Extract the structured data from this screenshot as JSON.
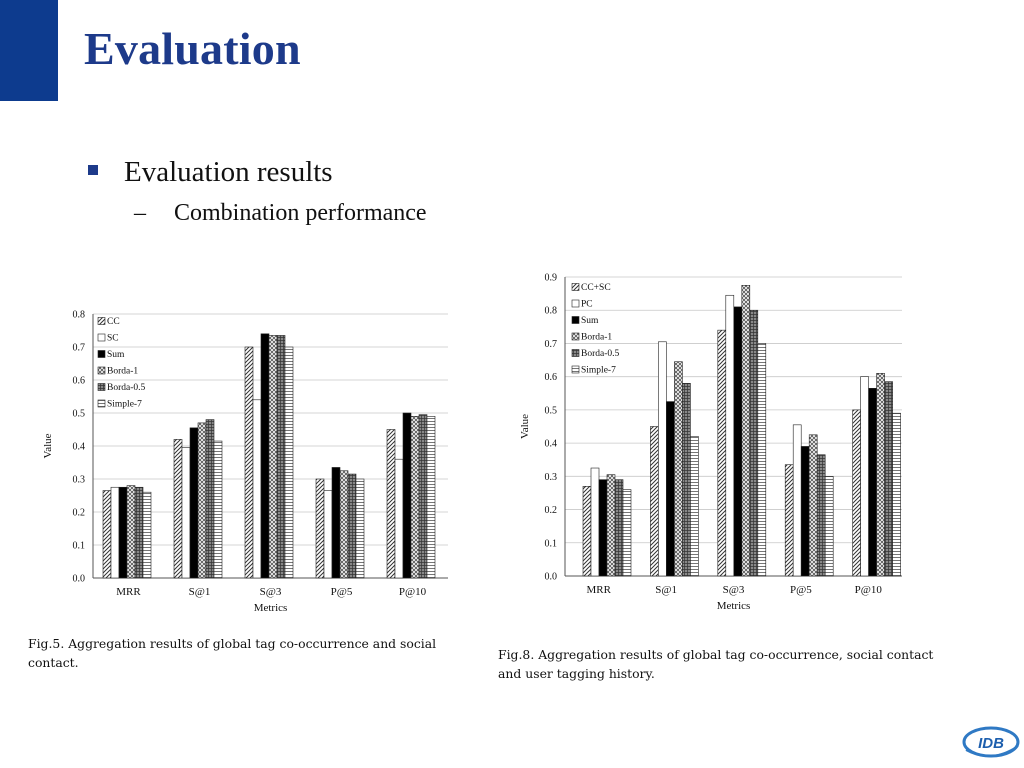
{
  "slide": {
    "title": "Evaluation",
    "bullet": "Evaluation results",
    "sub_dash": "–",
    "sub_bullet": "Combination performance",
    "logo_text": "IDB",
    "colors": {
      "accent": "#0d3b8e",
      "title": "#1d3a8a"
    }
  },
  "captions": {
    "fig5": "Fig.5. Aggregation results of global tag co-occurrence and social contact.",
    "fig8": "Fig.8. Aggregation results of global tag co-occurrence, social contact and user tagging history."
  },
  "chart_data": [
    {
      "type": "bar",
      "categories": [
        "MRR",
        "S@1",
        "S@3",
        "P@5",
        "P@10"
      ],
      "xlabel": "Metrics",
      "ylabel": "Value",
      "ylim": [
        0,
        0.8
      ],
      "yticks": [
        "0.0",
        "0.1",
        "0.2",
        "0.3",
        "0.4",
        "0.5",
        "0.6",
        "0.7",
        "0.8"
      ],
      "grid": true,
      "legend_position": "top-left",
      "series": [
        {
          "name": "CC",
          "pattern": "diag",
          "values": [
            0.265,
            0.42,
            0.7,
            0.3,
            0.45
          ]
        },
        {
          "name": "SC",
          "pattern": "white",
          "values": [
            0.275,
            0.395,
            0.54,
            0.265,
            0.36
          ]
        },
        {
          "name": "Sum",
          "pattern": "black",
          "values": [
            0.275,
            0.455,
            0.74,
            0.335,
            0.5
          ]
        },
        {
          "name": "Borda-1",
          "pattern": "cross",
          "values": [
            0.28,
            0.47,
            0.735,
            0.325,
            0.49
          ]
        },
        {
          "name": "Borda-0.5",
          "pattern": "grid",
          "values": [
            0.275,
            0.48,
            0.735,
            0.315,
            0.495
          ]
        },
        {
          "name": "Simple-7",
          "pattern": "hlines",
          "values": [
            0.26,
            0.415,
            0.7,
            0.3,
            0.49
          ]
        }
      ]
    },
    {
      "type": "bar",
      "categories": [
        "MRR",
        "S@1",
        "S@3",
        "P@5",
        "P@10"
      ],
      "xlabel": "Metrics",
      "ylabel": "Value",
      "ylim": [
        0,
        0.9
      ],
      "yticks": [
        "0.0",
        "0.1",
        "0.2",
        "0.3",
        "0.4",
        "0.5",
        "0.6",
        "0.7",
        "0.8",
        "0.9"
      ],
      "grid": true,
      "legend_position": "top-left",
      "series": [
        {
          "name": "CC+SC",
          "pattern": "diag",
          "values": [
            0.27,
            0.45,
            0.74,
            0.335,
            0.5
          ]
        },
        {
          "name": "PC",
          "pattern": "white",
          "values": [
            0.325,
            0.705,
            0.845,
            0.455,
            0.6
          ]
        },
        {
          "name": "Sum",
          "pattern": "black",
          "values": [
            0.29,
            0.525,
            0.81,
            0.39,
            0.565
          ]
        },
        {
          "name": "Borda-1",
          "pattern": "cross",
          "values": [
            0.305,
            0.645,
            0.875,
            0.425,
            0.61
          ]
        },
        {
          "name": "Borda-0.5",
          "pattern": "grid",
          "values": [
            0.29,
            0.58,
            0.8,
            0.365,
            0.585
          ]
        },
        {
          "name": "Simple-7",
          "pattern": "hlines",
          "values": [
            0.26,
            0.42,
            0.7,
            0.3,
            0.49
          ]
        }
      ]
    }
  ]
}
